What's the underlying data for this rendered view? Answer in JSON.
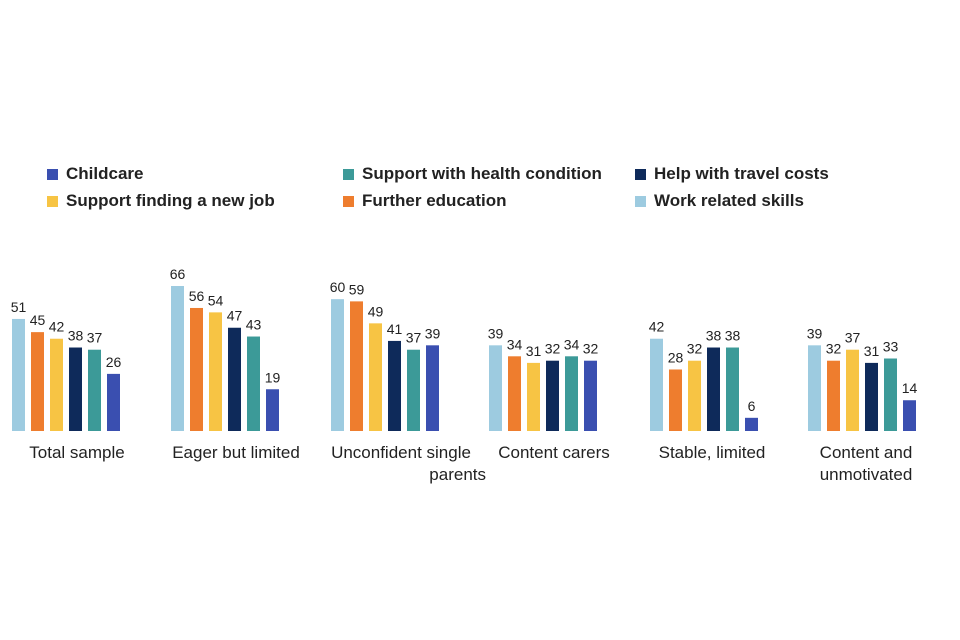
{
  "chart_data": {
    "type": "bar",
    "title": "",
    "xlabel": "",
    "ylabel": "",
    "ylim": [
      0,
      70
    ],
    "grid": false,
    "legend_position": "top",
    "categories": [
      "Total sample",
      "Eager but limited",
      "Unconfident single parents",
      "Content carers",
      "Stable, limited",
      "Content and unmotivated"
    ],
    "series": [
      {
        "name": "Work related skills",
        "color": "#9DCBE0",
        "values": [
          51,
          66,
          60,
          39,
          42,
          39
        ]
      },
      {
        "name": "Further education",
        "color": "#EE7D2E",
        "values": [
          45,
          56,
          59,
          34,
          28,
          32
        ]
      },
      {
        "name": "Support finding a new job",
        "color": "#F7C444",
        "values": [
          42,
          54,
          49,
          31,
          32,
          37
        ]
      },
      {
        "name": "Help with travel costs",
        "color": "#0E2A5A",
        "values": [
          38,
          47,
          41,
          32,
          38,
          31
        ]
      },
      {
        "name": "Support with health condition",
        "color": "#3C9A98",
        "values": [
          37,
          43,
          37,
          34,
          38,
          33
        ]
      },
      {
        "name": "Childcare",
        "color": "#3A4FB0",
        "values": [
          26,
          19,
          39,
          32,
          6,
          14
        ]
      }
    ]
  },
  "legend": {
    "rows": [
      [
        "Childcare",
        "Support with health condition",
        "Help with travel costs"
      ],
      [
        "Support finding a new job",
        "Further education",
        "Work related skills"
      ]
    ]
  }
}
